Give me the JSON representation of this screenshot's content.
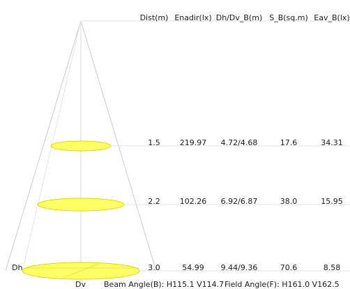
{
  "columns": [
    "Dist(m)",
    "Enadir(lx)",
    "Dh/Dv_B(m)",
    "S_B(sq.m)",
    "Eav_B(lx)"
  ],
  "rows": [
    {
      "dist": "1.5",
      "enadir": "219.97",
      "dhdv": "4.72/4.68",
      "area": "17.6",
      "eav": "34.31"
    },
    {
      "dist": "2.2",
      "enadir": "102.26",
      "dhdv": "6.92/6.87",
      "area": "38.0",
      "eav": "15.95"
    },
    {
      "dist": "3.0",
      "enadir": "54.99",
      "dhdv": "9.44/9.36",
      "area": "70.6",
      "eav": "8.58"
    }
  ],
  "labels": {
    "dh": "Dh",
    "dv": "Dv",
    "beam_angle": "Beam Angle(B): H115.1 V114.7",
    "field_angle": "Field Angle(F): H161.0 V162.5"
  },
  "colors": {
    "spot_fill": "#ffff66",
    "spot_stroke": "#e6d400",
    "cone_line": "#cccccc",
    "guide_line": "#e0e0e0"
  }
}
